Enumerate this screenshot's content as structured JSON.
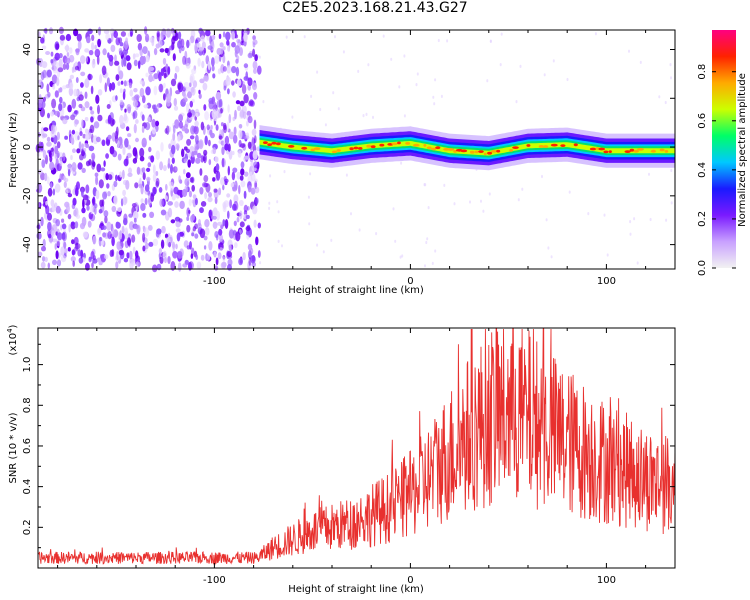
{
  "title": "C2E5.2023.168.21.43.G27",
  "chart_data": [
    {
      "type": "heatmap",
      "xlabel": "Height of straight line (km)",
      "ylabel": "Frequency (Hz)",
      "xlim": [
        -190,
        135
      ],
      "ylim": [
        -50,
        48
      ],
      "x_ticks": [
        -100,
        0,
        100
      ],
      "x_tick_labels": [
        "-100",
        "0",
        "100"
      ],
      "y_ticks": [
        -40,
        -20,
        0,
        20,
        40
      ],
      "y_tick_labels": [
        "-40",
        "-20",
        "0",
        "20",
        "40"
      ],
      "colorbar": {
        "label": "Normalized spectral amplitude",
        "range": [
          0,
          0.97
        ],
        "ticks": [
          0.0,
          0.2,
          0.4,
          0.6,
          0.8
        ],
        "tick_labels": [
          "0.0",
          "0.2",
          "0.4",
          "0.6",
          "0.8"
        ],
        "colormap": [
          "#f2f2f2",
          "#c8a0ff",
          "#7a1aff",
          "#1a1aff",
          "#00c8ff",
          "#00ff66",
          "#ccff00",
          "#ffaa00",
          "#ff2200",
          "#ff0080"
        ]
      },
      "noise_region_x": [
        -190,
        -77
      ],
      "ridge_x": [
        -77,
        -60,
        -40,
        -20,
        0,
        20,
        40,
        60,
        80,
        100,
        120,
        135
      ],
      "ridge_y": [
        2,
        0,
        -1.5,
        0.5,
        1.5,
        -1.5,
        -2.5,
        0.5,
        1,
        -1.5,
        -1.5,
        -1.5
      ]
    },
    {
      "type": "line",
      "xlabel": "Height of straight line (km)",
      "ylabel": "SNR (10 * v/v)",
      "y_scale_note": "(x10",
      "y_scale_exp": "4",
      "y_scale_close": ")",
      "xlim": [
        -190,
        135
      ],
      "ylim": [
        0,
        1.18
      ],
      "x_ticks": [
        -100,
        0,
        100
      ],
      "x_tick_labels": [
        "-100",
        "0",
        "100"
      ],
      "y_ticks": [
        0.2,
        0.4,
        0.6,
        0.8,
        1.0
      ],
      "y_tick_labels": [
        "0.2",
        "0.4",
        "0.6",
        "0.8",
        "1.0"
      ],
      "color": "#e8302e",
      "series": [
        {
          "x": [
            -190,
            -160,
            -130,
            -100,
            -78,
            -70,
            -50,
            -30,
            -10,
            0,
            10,
            20,
            30,
            40,
            50,
            60,
            70,
            80,
            90,
            100,
            110,
            120,
            135
          ],
          "y": [
            0.05,
            0.05,
            0.05,
            0.05,
            0.05,
            0.1,
            0.18,
            0.22,
            0.3,
            0.36,
            0.45,
            0.56,
            0.66,
            0.74,
            0.78,
            0.74,
            0.68,
            0.62,
            0.57,
            0.52,
            0.48,
            0.44,
            0.4
          ]
        }
      ]
    }
  ]
}
